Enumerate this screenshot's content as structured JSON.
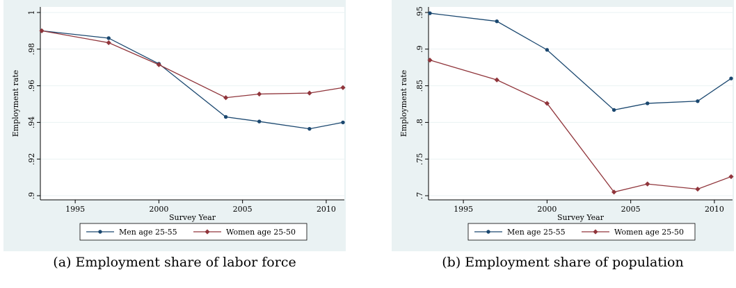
{
  "chart_data": [
    {
      "type": "line",
      "caption": "(a) Employment share of labor force",
      "xlabel": "Survey Year",
      "ylabel": "Employment rate",
      "xlim": [
        1993,
        2011
      ],
      "ylim": [
        0.9,
        1.0
      ],
      "x_ticks": [
        1995,
        2000,
        2005,
        2010
      ],
      "y_ticks": [
        0.9,
        0.92,
        0.94,
        0.96,
        0.98,
        1.0
      ],
      "y_tick_labels": [
        ".9",
        ".92",
        ".94",
        ".96",
        ".98",
        "1"
      ],
      "grid": true,
      "legend_position": "bottom",
      "series": [
        {
          "name": "Men age 25-55",
          "color": "#1a476f",
          "marker": "circle",
          "x": [
            1993,
            1997,
            2000,
            2004,
            2006,
            2009,
            2011
          ],
          "y": [
            0.99,
            0.986,
            0.972,
            0.943,
            0.9405,
            0.9365,
            0.94
          ]
        },
        {
          "name": "Women age 25-50",
          "color": "#90353b",
          "marker": "diamond",
          "x": [
            1993,
            1997,
            2000,
            2004,
            2006,
            2009,
            2011
          ],
          "y": [
            0.99,
            0.9835,
            0.9715,
            0.9535,
            0.9555,
            0.956,
            0.959
          ]
        }
      ]
    },
    {
      "type": "line",
      "caption": "(b) Employment share of population",
      "xlabel": "Survey Year",
      "ylabel": "Employment rate",
      "xlim": [
        1993,
        2011
      ],
      "ylim": [
        0.7,
        0.95
      ],
      "x_ticks": [
        1995,
        2000,
        2005,
        2010
      ],
      "y_ticks": [
        0.7,
        0.75,
        0.8,
        0.85,
        0.9,
        0.95
      ],
      "y_tick_labels": [
        ".7",
        ".75",
        ".8",
        ".85",
        ".9",
        ".95"
      ],
      "grid": true,
      "legend_position": "bottom",
      "series": [
        {
          "name": "Men age 25-55",
          "color": "#1a476f",
          "marker": "circle",
          "x": [
            1993,
            1997,
            2000,
            2004,
            2006,
            2009,
            2011
          ],
          "y": [
            0.949,
            0.938,
            0.899,
            0.817,
            0.826,
            0.829,
            0.86
          ]
        },
        {
          "name": "Women age 25-50",
          "color": "#90353b",
          "marker": "diamond",
          "x": [
            1993,
            1997,
            2000,
            2004,
            2006,
            2009,
            2011
          ],
          "y": [
            0.885,
            0.858,
            0.826,
            0.705,
            0.716,
            0.709,
            0.726
          ]
        }
      ]
    }
  ]
}
